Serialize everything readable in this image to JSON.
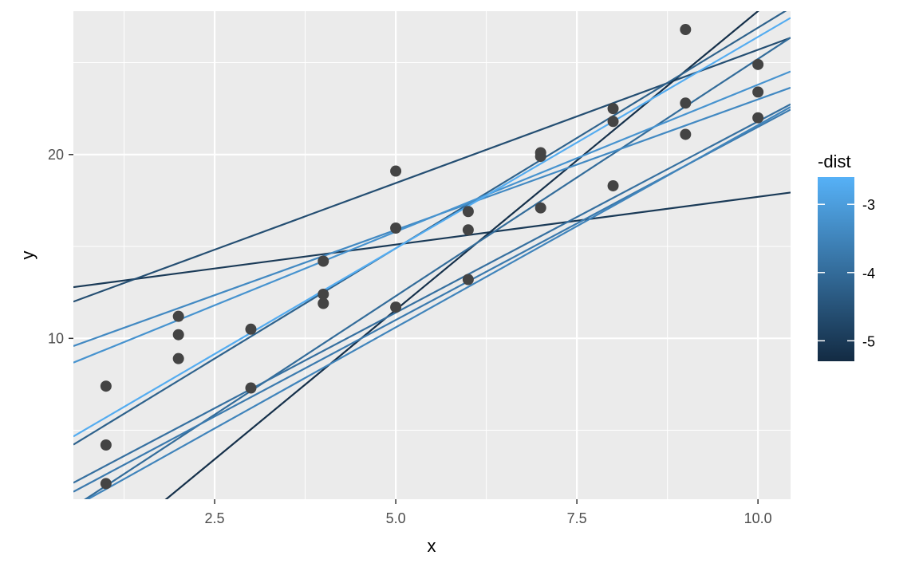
{
  "chart_data": {
    "type": "scatter",
    "xlabel": "x",
    "ylabel": "y",
    "xlim": [
      0.55,
      10.45
    ],
    "ylim": [
      1.25,
      27.8
    ],
    "x_ticks": [
      {
        "value": 2.5,
        "label": "2.5"
      },
      {
        "value": 5.0,
        "label": "5.0"
      },
      {
        "value": 7.5,
        "label": "7.5"
      },
      {
        "value": 10.0,
        "label": "10.0"
      }
    ],
    "y_ticks": [
      {
        "value": 10,
        "label": "10"
      },
      {
        "value": 20,
        "label": "20"
      }
    ],
    "points": [
      {
        "x": 1,
        "y": 4.2
      },
      {
        "x": 1,
        "y": 7.4
      },
      {
        "x": 1,
        "y": 2.1
      },
      {
        "x": 2,
        "y": 8.9
      },
      {
        "x": 2,
        "y": 10.2
      },
      {
        "x": 2,
        "y": 11.2
      },
      {
        "x": 3,
        "y": 7.3
      },
      {
        "x": 3,
        "y": 10.5
      },
      {
        "x": 4,
        "y": 11.9
      },
      {
        "x": 4,
        "y": 12.4
      },
      {
        "x": 4,
        "y": 14.2
      },
      {
        "x": 5,
        "y": 19.1
      },
      {
        "x": 5,
        "y": 16.0
      },
      {
        "x": 5,
        "y": 11.7
      },
      {
        "x": 6,
        "y": 16.9
      },
      {
        "x": 6,
        "y": 15.9
      },
      {
        "x": 6,
        "y": 13.2
      },
      {
        "x": 7,
        "y": 17.1
      },
      {
        "x": 7,
        "y": 20.1
      },
      {
        "x": 7,
        "y": 19.9
      },
      {
        "x": 8,
        "y": 18.3
      },
      {
        "x": 8,
        "y": 21.8
      },
      {
        "x": 8,
        "y": 22.5
      },
      {
        "x": 9,
        "y": 26.8
      },
      {
        "x": 9,
        "y": 21.1
      },
      {
        "x": 9,
        "y": 22.8
      },
      {
        "x": 10,
        "y": 24.9
      },
      {
        "x": 10,
        "y": 22.0
      },
      {
        "x": 10,
        "y": 23.4
      }
    ],
    "lines": [
      {
        "intercept": 12.5,
        "slope": 0.52,
        "dist": -5.0
      },
      {
        "intercept": 11.2,
        "slope": 1.45,
        "dist": -4.6
      },
      {
        "intercept": -4.7,
        "slope": 3.25,
        "dist": -5.2
      },
      {
        "intercept": 2.9,
        "slope": 2.4,
        "dist": -4.2
      },
      {
        "intercept": -0.6,
        "slope": 2.58,
        "dist": -4.0
      },
      {
        "intercept": 1.0,
        "slope": 2.08,
        "dist": -3.9
      },
      {
        "intercept": 0.5,
        "slope": 2.1,
        "dist": -3.7
      },
      {
        "intercept": -0.4,
        "slope": 2.2,
        "dist": -3.5
      },
      {
        "intercept": 8.8,
        "slope": 1.42,
        "dist": -3.4
      },
      {
        "intercept": 7.8,
        "slope": 1.6,
        "dist": -3.2
      },
      {
        "intercept": 3.4,
        "slope": 2.3,
        "dist": -2.7
      }
    ],
    "legend": {
      "title": "-dist",
      "position": "right",
      "range": [
        -5.3,
        -2.6
      ],
      "low_color": "#132B43",
      "high_color": "#56B1F7",
      "ticks": [
        {
          "value": -3,
          "label": "-3"
        },
        {
          "value": -4,
          "label": "-4"
        },
        {
          "value": -5,
          "label": "-5"
        }
      ]
    },
    "grid": true,
    "panel_background": "#EBEBEB",
    "point_color": "#444444"
  }
}
